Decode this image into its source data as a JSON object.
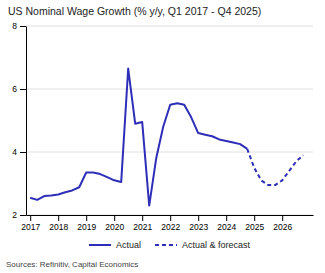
{
  "chart_data": {
    "type": "line",
    "title": "US Nominal Wage Growth (% y/y, Q1 2017 - Q4 2025)",
    "annotations": [
      "Sources: Refinitiv, Capital Economics"
    ],
    "xlim": [
      2016.85,
      2027.1
    ],
    "xticks": [
      2017,
      2018,
      2019,
      2020,
      2021,
      2022,
      2023,
      2024,
      2025,
      2026
    ],
    "ylim": [
      2,
      8
    ],
    "yticks": [
      2,
      4,
      6,
      8
    ],
    "grid": "y",
    "legend": "bottom",
    "series": [
      {
        "name": "Actual",
        "color": "#2e2eb8",
        "line_style": "solid",
        "x": [
          2017.0,
          2017.25,
          2017.5,
          2017.75,
          2018.0,
          2018.25,
          2018.5,
          2018.75,
          2019.0,
          2019.25,
          2019.5,
          2019.75,
          2020.0,
          2020.25,
          2020.5,
          2020.75,
          2021.0,
          2021.25,
          2021.5,
          2021.75,
          2022.0,
          2022.25,
          2022.5,
          2022.75,
          2023.0,
          2023.25,
          2023.5,
          2023.75,
          2024.0,
          2024.25,
          2024.5,
          2024.75
        ],
        "values": [
          2.55,
          2.48,
          2.6,
          2.62,
          2.65,
          2.72,
          2.78,
          2.88,
          3.35,
          3.35,
          3.3,
          3.2,
          3.1,
          3.05,
          6.65,
          4.9,
          4.95,
          2.3,
          3.8,
          4.8,
          5.5,
          5.55,
          5.5,
          5.1,
          4.6,
          4.55,
          4.5,
          4.4,
          4.35,
          4.3,
          4.25,
          4.1
        ]
      },
      {
        "name": "Actual & forecast",
        "color": "#2e2eb8",
        "line_style": "dashed",
        "x": [
          2024.75,
          2025.0,
          2025.25,
          2025.5,
          2025.75,
          2026.0,
          2026.25,
          2026.5,
          2026.75
        ],
        "values": [
          4.1,
          3.5,
          3.1,
          2.95,
          2.95,
          3.1,
          3.4,
          3.7,
          3.9
        ]
      }
    ]
  }
}
